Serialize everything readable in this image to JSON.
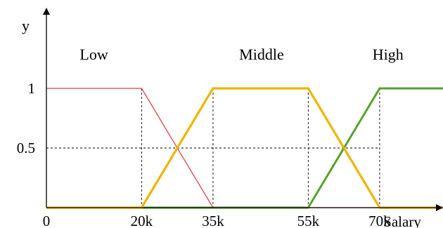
{
  "chart_data": {
    "type": "line",
    "title": "",
    "xlabel": "Salary",
    "ylabel": "y",
    "x_units": "salary (thousands)",
    "xlim": [
      0,
      92
    ],
    "ylim": [
      0,
      1.15
    ],
    "x_tick_values": [
      0,
      20,
      35,
      55,
      70
    ],
    "x_tick_labels": [
      "0",
      "20k",
      "35k",
      "55k",
      "70k"
    ],
    "y_tick_values": [
      0.5,
      1
    ],
    "y_tick_labels": [
      "0.5",
      "1"
    ],
    "grid": false,
    "reference_lines": [
      {
        "orientation": "vertical",
        "x": 20,
        "y_max": 1
      },
      {
        "orientation": "vertical",
        "x": 35,
        "y_max": 1
      },
      {
        "orientation": "vertical",
        "x": 55,
        "y_max": 1
      },
      {
        "orientation": "vertical",
        "x": 70,
        "y_max": 1
      },
      {
        "orientation": "horizontal",
        "y": 0.5,
        "x_max": 70
      }
    ],
    "series": [
      {
        "name": "Low",
        "color": "#e0404a",
        "x": [
          0,
          20,
          35,
          55,
          70,
          92
        ],
        "y": [
          1,
          1,
          0,
          0,
          0,
          0
        ]
      },
      {
        "name": "Middle",
        "color": "#f0b400",
        "x": [
          0,
          20,
          35,
          55,
          70,
          92
        ],
        "y": [
          0,
          0,
          1,
          1,
          0,
          0
        ]
      },
      {
        "name": "High",
        "color": "#5aa02c",
        "x": [
          0,
          20,
          35,
          55,
          70,
          92
        ],
        "y": [
          0,
          0,
          0,
          0,
          1,
          1
        ]
      }
    ],
    "annotations": [
      {
        "text": "Low",
        "x": 7,
        "y": 1.24
      },
      {
        "text": "Middle",
        "x": 40.5,
        "y": 1.24
      },
      {
        "text": "High",
        "x": 68.5,
        "y": 1.24
      }
    ]
  }
}
